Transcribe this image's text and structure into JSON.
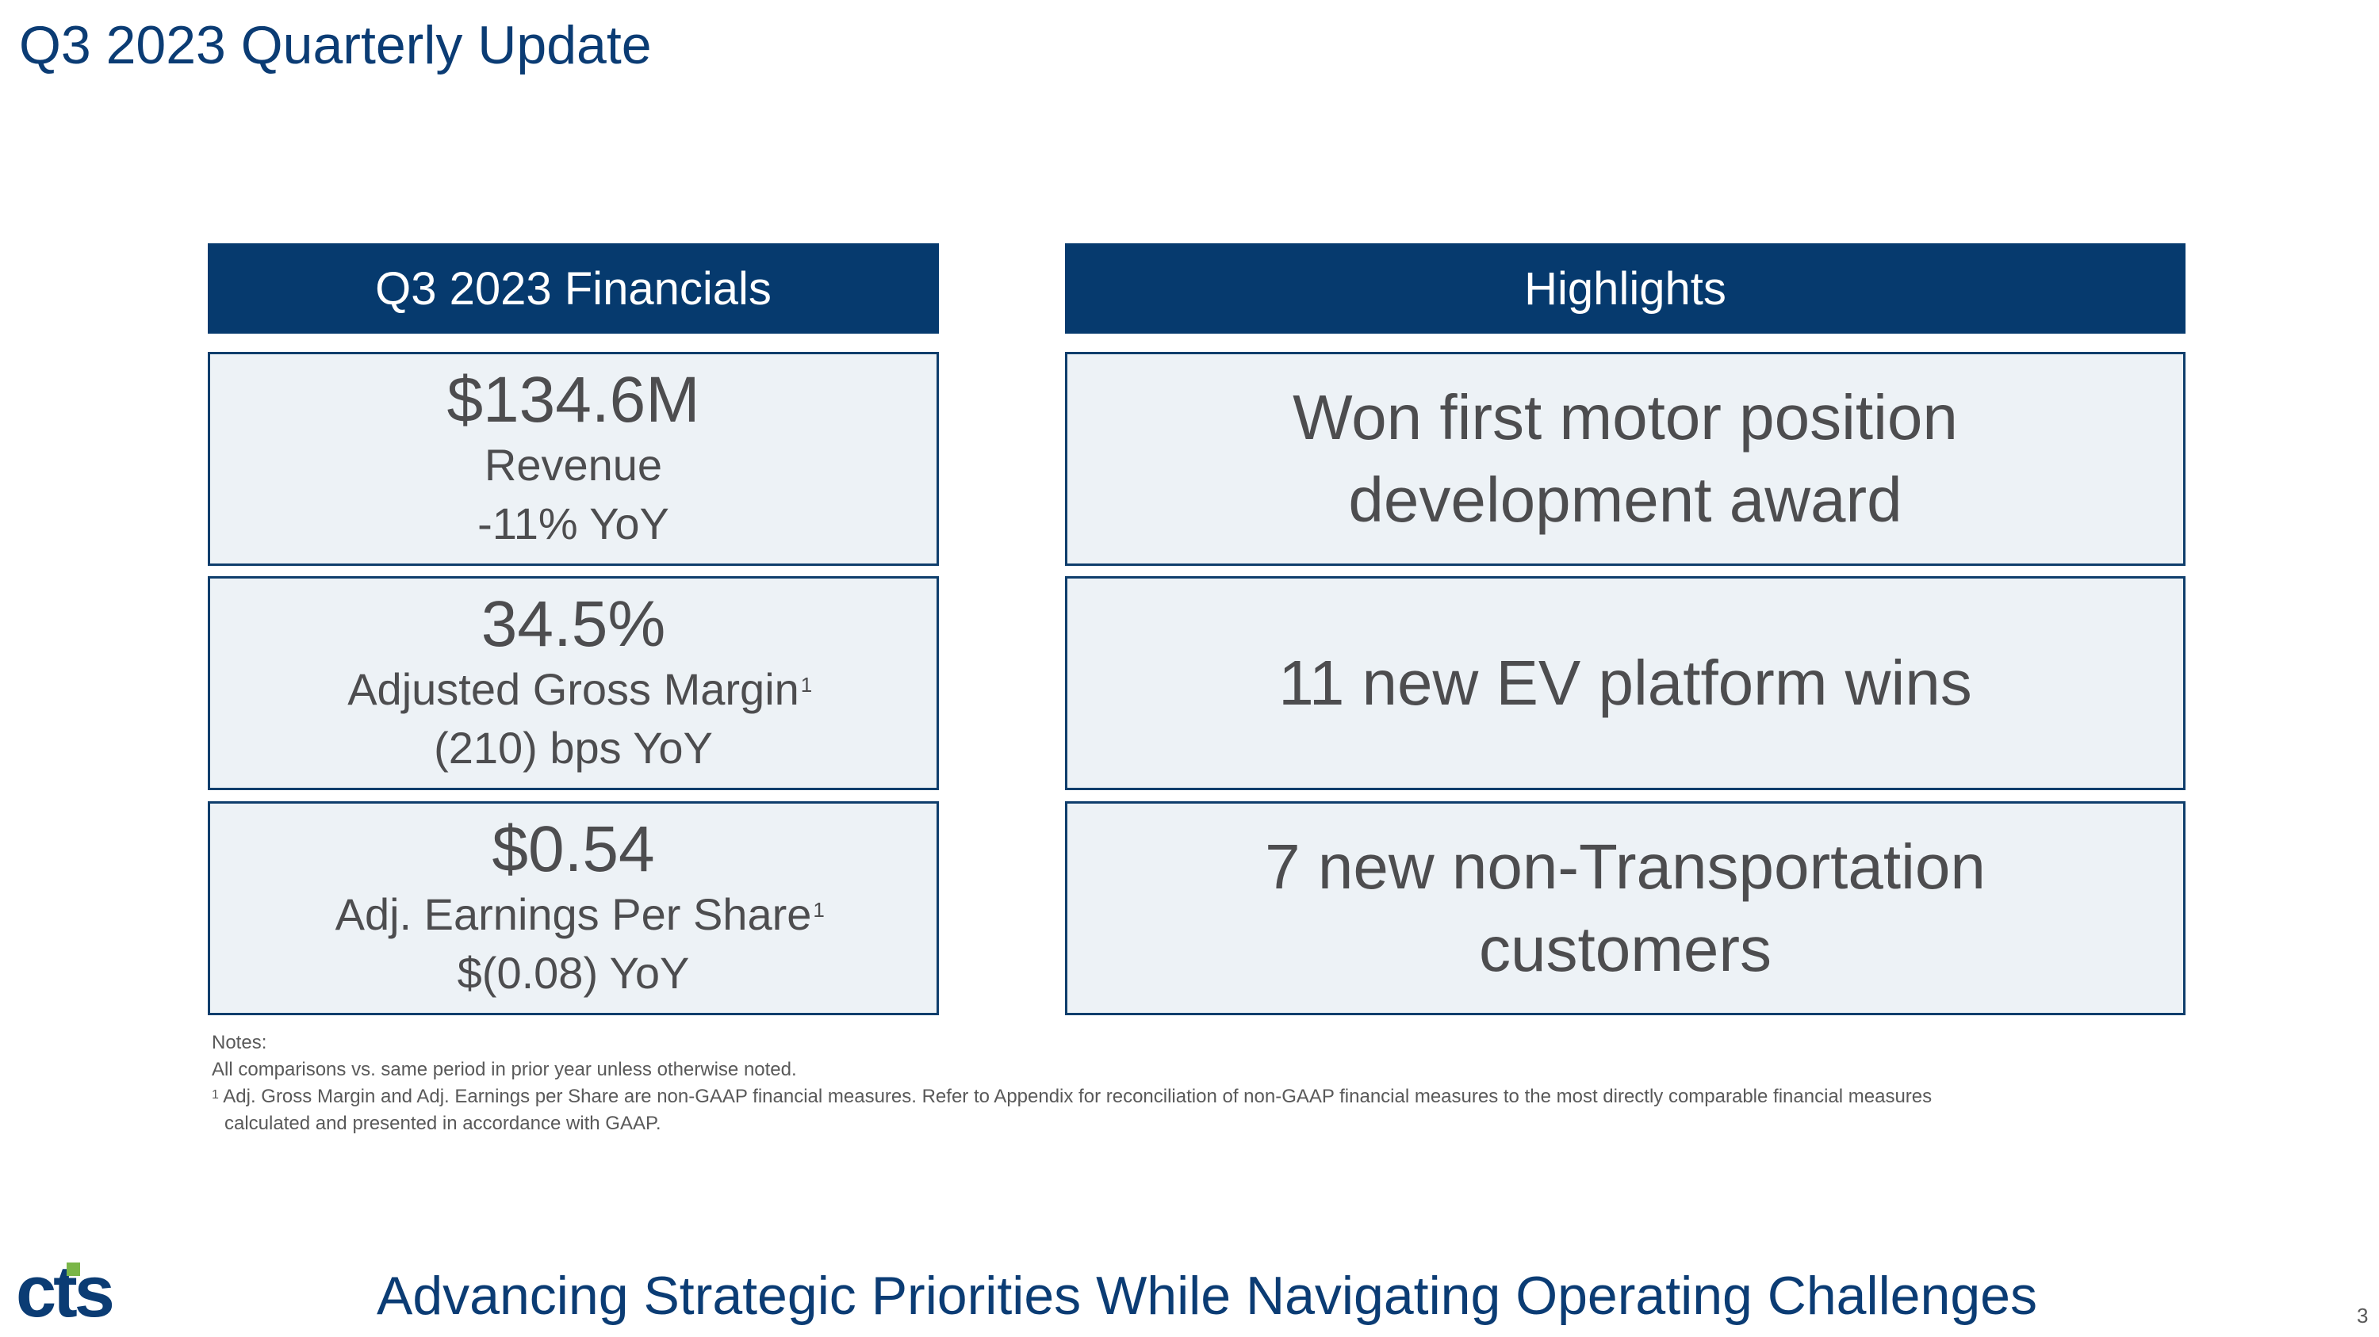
{
  "page": {
    "title": "Q3 2023 Quarterly Update",
    "tagline": "Advancing Strategic Priorities While Navigating Operating Challenges",
    "page_number": "3",
    "logo_text": "cts"
  },
  "financials": {
    "header": "Q3 2023 Financials",
    "metrics": [
      {
        "value": "$134.6M",
        "label": "Revenue",
        "footnote": "",
        "change": "-11% YoY"
      },
      {
        "value": "34.5%",
        "label": "Adjusted Gross Margin",
        "footnote": "1",
        "change": "(210) bps YoY"
      },
      {
        "value": "$0.54",
        "label": "Adj. Earnings Per Share",
        "footnote": "1",
        "change": "$(0.08) YoY"
      }
    ]
  },
  "highlights": {
    "header": "Highlights",
    "items": [
      {
        "line1": "Won first motor position",
        "line2": "development award"
      },
      {
        "line1": "11 new EV platform wins",
        "line2": ""
      },
      {
        "line1": "7 new non-Transportation",
        "line2": "customers"
      }
    ]
  },
  "notes": {
    "heading": "Notes:",
    "line1": "All comparisons vs. same period in prior year unless otherwise noted.",
    "footnote_marker": "1",
    "footnote_text": "Adj. Gross Margin and Adj. Earnings per Share are non-GAAP financial measures. Refer to Appendix for reconciliation of non-GAAP financial measures to the most directly comparable financial measures",
    "footnote_text_cont": "calculated and presented in accordance with GAAP."
  },
  "colors": {
    "brand_navy": "#063a6e",
    "box_fill": "#edf2f6",
    "logo_green": "#7ab648"
  }
}
